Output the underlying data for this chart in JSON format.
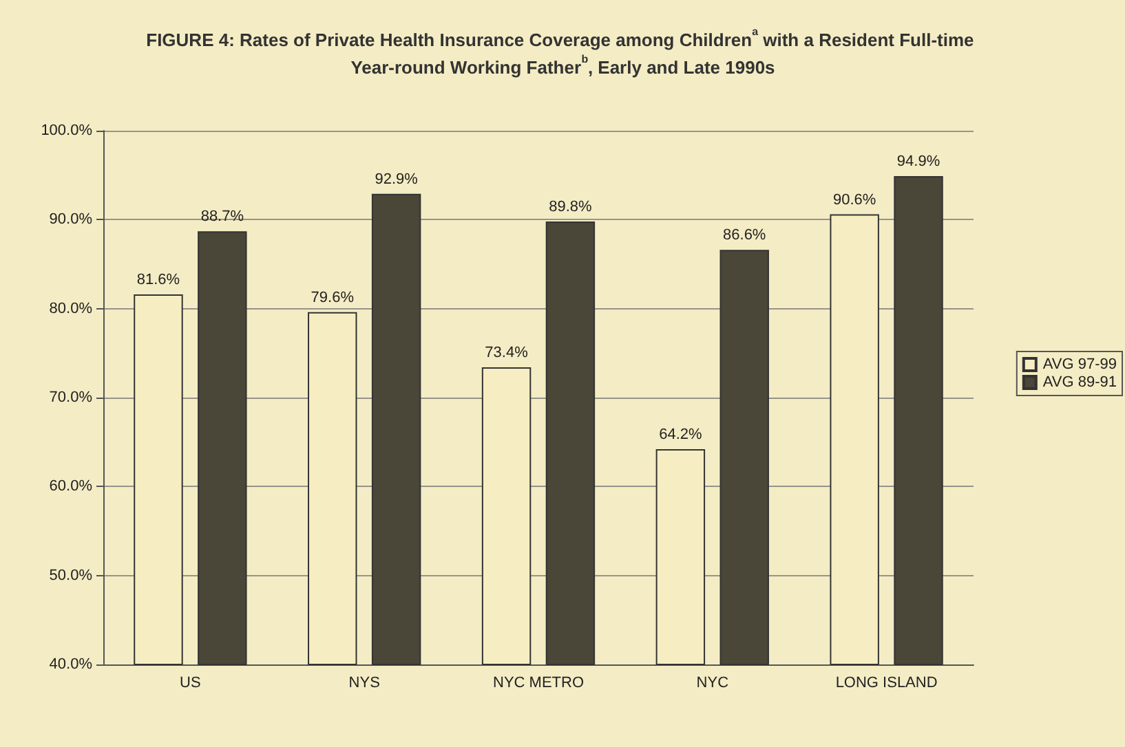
{
  "chart_data": {
    "type": "bar",
    "title": "FIGURE 4: Rates of Private Health Insurance Coverage among Children$^{a}$ with a Resident Full-time Year-round Working Father$^{b}$, Early and Late 1990s",
    "categories": [
      "US",
      "NYS",
      "NYC METRO",
      "NYC",
      "LONG ISLAND"
    ],
    "series": [
      {
        "name": "AVG 97-99",
        "color": "#f6edc2",
        "values": [
          81.6,
          79.6,
          73.4,
          64.2,
          90.6
        ],
        "value_labels": [
          "81.6%",
          "79.6%",
          "73.4%",
          "64.2%",
          "90.6%"
        ]
      },
      {
        "name": "AVG 89-91",
        "color": "#4a4638",
        "values": [
          88.7,
          92.9,
          89.8,
          86.6,
          94.9
        ],
        "value_labels": [
          "88.7%",
          "92.9%",
          "89.8%",
          "86.6%",
          "94.9%"
        ]
      }
    ],
    "ylim": [
      40,
      100
    ],
    "yticks": [
      {
        "value": 40,
        "label": "40.0%"
      },
      {
        "value": 50,
        "label": "50.0%"
      },
      {
        "value": 60,
        "label": "60.0%"
      },
      {
        "value": 70,
        "label": "70.0%"
      },
      {
        "value": 80,
        "label": "80.0%"
      },
      {
        "value": 90,
        "label": "90.0%"
      },
      {
        "value": 100,
        "label": "100.0%"
      }
    ],
    "grid": "y",
    "legend": "right"
  }
}
